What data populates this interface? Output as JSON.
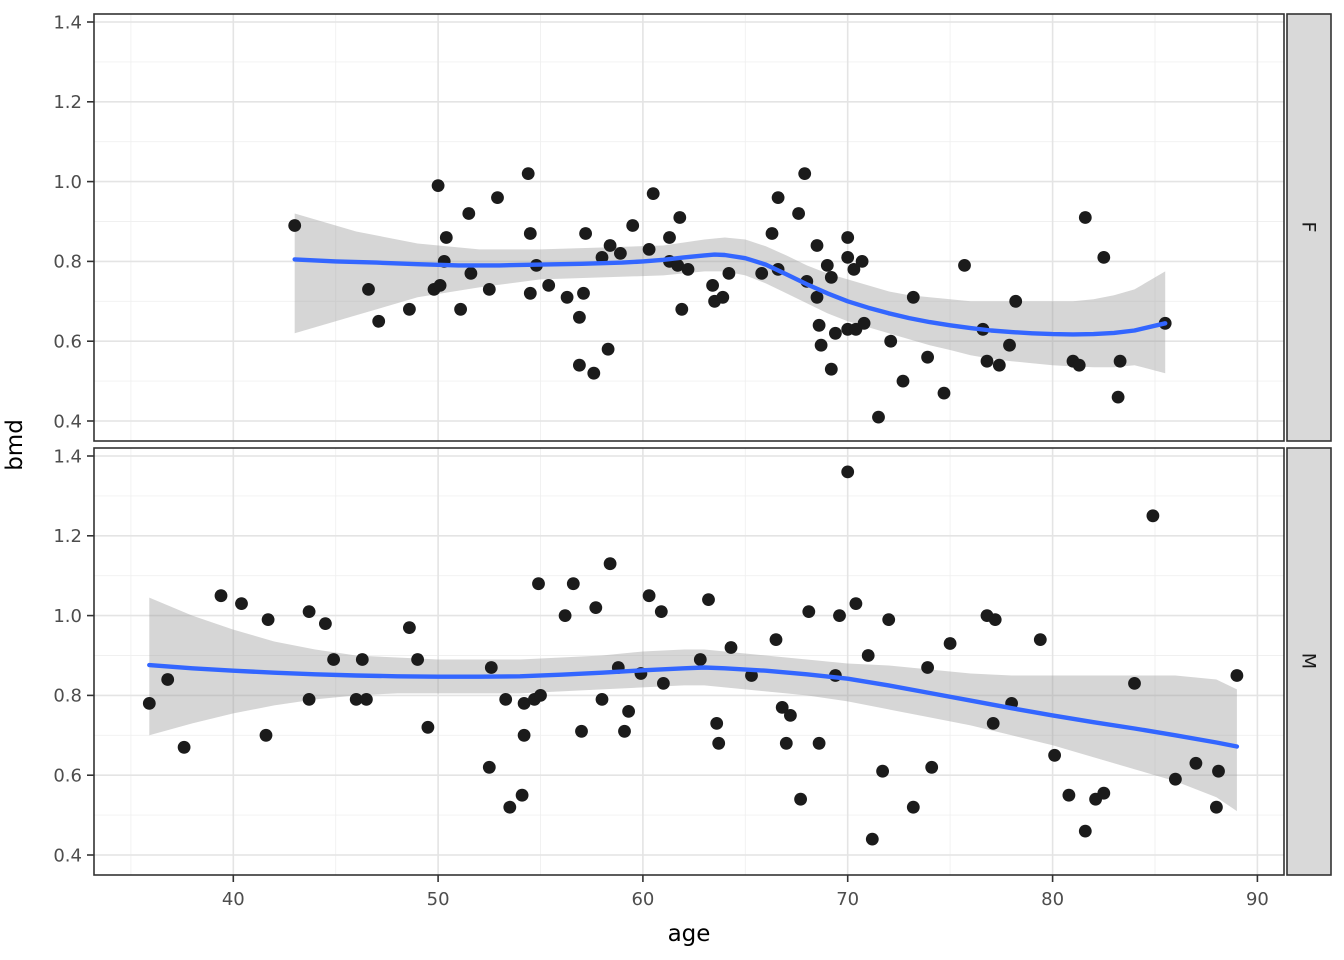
{
  "chart_data": {
    "type": "scatter",
    "title": "",
    "xlabel": "age",
    "ylabel": "bmd",
    "legend_position": "none",
    "grid": "on",
    "xlim": [
      33.2,
      91.3
    ],
    "ylim": [
      0.35,
      1.42
    ],
    "x_ticks": [
      40,
      50,
      60,
      70,
      80,
      90
    ],
    "x_minor": [
      35,
      45,
      55,
      65,
      75,
      85
    ],
    "y_ticks": [
      0.4,
      0.6,
      0.8,
      1.0,
      1.2,
      1.4
    ],
    "y_minor": [
      0.5,
      0.7,
      0.9,
      1.1,
      1.3
    ],
    "colors": {
      "smooth_line": "#3366FF",
      "band": "#999999",
      "band_alpha": 0.4,
      "point": "#1B1B1B",
      "panel_bg": "#FFFFFF",
      "panel_border": "#333333",
      "grid_major": "#E4E4E4",
      "grid_minor": "#F0F0F0",
      "strip_bg": "#D9D9D9",
      "tick": "#333333",
      "axis_text": "#4D4D4D"
    },
    "facets": [
      {
        "label": "F",
        "points": [
          [
            43.0,
            0.89
          ],
          [
            46.6,
            0.73
          ],
          [
            47.1,
            0.65
          ],
          [
            48.6,
            0.68
          ],
          [
            49.8,
            0.73
          ],
          [
            50.0,
            0.99
          ],
          [
            50.1,
            0.74
          ],
          [
            50.3,
            0.8
          ],
          [
            50.4,
            0.86
          ],
          [
            51.1,
            0.68
          ],
          [
            51.5,
            0.92
          ],
          [
            51.6,
            0.77
          ],
          [
            52.5,
            0.73
          ],
          [
            52.9,
            0.96
          ],
          [
            54.4,
            1.02
          ],
          [
            54.5,
            0.87
          ],
          [
            54.5,
            0.72
          ],
          [
            54.8,
            0.79
          ],
          [
            55.4,
            0.74
          ],
          [
            56.3,
            0.71
          ],
          [
            56.9,
            0.66
          ],
          [
            56.9,
            0.54
          ],
          [
            57.1,
            0.72
          ],
          [
            57.2,
            0.87
          ],
          [
            57.6,
            0.52
          ],
          [
            58.0,
            0.81
          ],
          [
            58.3,
            0.58
          ],
          [
            58.4,
            0.84
          ],
          [
            58.9,
            0.82
          ],
          [
            59.5,
            0.89
          ],
          [
            60.3,
            0.83
          ],
          [
            60.5,
            0.97
          ],
          [
            61.3,
            0.86
          ],
          [
            61.3,
            0.8
          ],
          [
            61.7,
            0.79
          ],
          [
            61.8,
            0.91
          ],
          [
            61.9,
            0.68
          ],
          [
            62.2,
            0.78
          ],
          [
            63.4,
            0.74
          ],
          [
            63.5,
            0.7
          ],
          [
            63.9,
            0.71
          ],
          [
            64.2,
            0.77
          ],
          [
            65.8,
            0.77
          ],
          [
            66.3,
            0.87
          ],
          [
            66.6,
            0.96
          ],
          [
            66.6,
            0.78
          ],
          [
            67.6,
            0.92
          ],
          [
            67.9,
            1.02
          ],
          [
            68.0,
            0.75
          ],
          [
            68.5,
            0.84
          ],
          [
            68.5,
            0.71
          ],
          [
            68.6,
            0.64
          ],
          [
            68.7,
            0.59
          ],
          [
            69.0,
            0.79
          ],
          [
            69.2,
            0.76
          ],
          [
            69.2,
            0.53
          ],
          [
            69.4,
            0.62
          ],
          [
            70.0,
            0.86
          ],
          [
            70.0,
            0.81
          ],
          [
            70.0,
            0.63
          ],
          [
            70.3,
            0.78
          ],
          [
            70.4,
            0.63
          ],
          [
            70.7,
            0.8
          ],
          [
            70.8,
            0.645
          ],
          [
            71.5,
            0.41
          ],
          [
            72.1,
            0.6
          ],
          [
            72.7,
            0.5
          ],
          [
            73.2,
            0.71
          ],
          [
            73.9,
            0.56
          ],
          [
            74.7,
            0.47
          ],
          [
            75.7,
            0.79
          ],
          [
            76.6,
            0.63
          ],
          [
            76.8,
            0.55
          ],
          [
            77.4,
            0.54
          ],
          [
            77.9,
            0.59
          ],
          [
            78.2,
            0.7
          ],
          [
            81.0,
            0.55
          ],
          [
            81.3,
            0.54
          ],
          [
            81.6,
            0.91
          ],
          [
            82.5,
            0.81
          ],
          [
            83.2,
            0.46
          ],
          [
            83.3,
            0.55
          ],
          [
            85.5,
            0.645
          ]
        ],
        "smooth": [
          [
            43,
            0.805
          ],
          [
            45,
            0.8
          ],
          [
            47,
            0.797
          ],
          [
            49,
            0.793
          ],
          [
            51,
            0.79
          ],
          [
            53,
            0.79
          ],
          [
            55,
            0.792
          ],
          [
            57,
            0.794
          ],
          [
            59,
            0.797
          ],
          [
            60,
            0.8
          ],
          [
            61,
            0.804
          ],
          [
            62,
            0.81
          ],
          [
            63,
            0.815
          ],
          [
            63.5,
            0.817
          ],
          [
            64,
            0.816
          ],
          [
            65,
            0.808
          ],
          [
            66,
            0.792
          ],
          [
            67,
            0.768
          ],
          [
            68,
            0.743
          ],
          [
            69,
            0.72
          ],
          [
            70,
            0.7
          ],
          [
            71,
            0.684
          ],
          [
            72,
            0.67
          ],
          [
            73,
            0.658
          ],
          [
            74,
            0.648
          ],
          [
            75,
            0.64
          ],
          [
            76,
            0.633
          ],
          [
            77,
            0.627
          ],
          [
            78,
            0.623
          ],
          [
            79,
            0.62
          ],
          [
            80,
            0.618
          ],
          [
            81,
            0.617
          ],
          [
            82,
            0.618
          ],
          [
            83,
            0.621
          ],
          [
            84,
            0.627
          ],
          [
            85.5,
            0.645
          ]
        ],
        "band": [
          [
            43,
            0.62,
            0.92
          ],
          [
            46,
            0.665,
            0.875
          ],
          [
            49,
            0.71,
            0.845
          ],
          [
            52,
            0.735,
            0.83
          ],
          [
            55,
            0.755,
            0.83
          ],
          [
            58,
            0.76,
            0.835
          ],
          [
            61,
            0.765,
            0.84
          ],
          [
            63,
            0.775,
            0.855
          ],
          [
            64,
            0.775,
            0.86
          ],
          [
            65,
            0.765,
            0.855
          ],
          [
            66,
            0.745,
            0.838
          ],
          [
            67,
            0.72,
            0.815
          ],
          [
            68,
            0.695,
            0.79
          ],
          [
            69,
            0.67,
            0.77
          ],
          [
            70,
            0.65,
            0.755
          ],
          [
            71,
            0.635,
            0.74
          ],
          [
            72,
            0.62,
            0.725
          ],
          [
            73,
            0.605,
            0.715
          ],
          [
            74,
            0.59,
            0.71
          ],
          [
            75,
            0.578,
            0.705
          ],
          [
            76,
            0.565,
            0.7
          ],
          [
            77,
            0.556,
            0.7
          ],
          [
            78,
            0.55,
            0.7
          ],
          [
            79,
            0.545,
            0.7
          ],
          [
            80,
            0.54,
            0.7
          ],
          [
            81,
            0.537,
            0.7
          ],
          [
            82,
            0.535,
            0.705
          ],
          [
            83,
            0.535,
            0.715
          ],
          [
            84,
            0.54,
            0.73
          ],
          [
            85.5,
            0.52,
            0.775
          ]
        ]
      },
      {
        "label": "M",
        "points": [
          [
            35.9,
            0.78
          ],
          [
            36.8,
            0.84
          ],
          [
            37.6,
            0.67
          ],
          [
            39.4,
            1.05
          ],
          [
            40.4,
            1.03
          ],
          [
            41.6,
            0.7
          ],
          [
            41.7,
            0.99
          ],
          [
            43.7,
            1.01
          ],
          [
            43.7,
            0.79
          ],
          [
            44.5,
            0.98
          ],
          [
            44.9,
            0.89
          ],
          [
            46.0,
            0.79
          ],
          [
            46.3,
            0.89
          ],
          [
            46.5,
            0.79
          ],
          [
            48.6,
            0.97
          ],
          [
            49.0,
            0.89
          ],
          [
            49.5,
            0.72
          ],
          [
            52.5,
            0.62
          ],
          [
            52.6,
            0.87
          ],
          [
            53.3,
            0.79
          ],
          [
            53.5,
            0.52
          ],
          [
            54.1,
            0.55
          ],
          [
            54.2,
            0.78
          ],
          [
            54.2,
            0.7
          ],
          [
            54.7,
            0.79
          ],
          [
            54.9,
            1.08
          ],
          [
            55.0,
            0.8
          ],
          [
            56.2,
            1.0
          ],
          [
            56.6,
            1.08
          ],
          [
            57.0,
            0.71
          ],
          [
            57.7,
            1.02
          ],
          [
            58.0,
            0.79
          ],
          [
            58.4,
            1.13
          ],
          [
            58.8,
            0.87
          ],
          [
            59.1,
            0.71
          ],
          [
            59.3,
            0.76
          ],
          [
            59.9,
            0.855
          ],
          [
            60.3,
            1.05
          ],
          [
            60.9,
            1.01
          ],
          [
            61.0,
            0.83
          ],
          [
            62.8,
            0.89
          ],
          [
            63.2,
            1.04
          ],
          [
            63.6,
            0.73
          ],
          [
            63.7,
            0.68
          ],
          [
            64.3,
            0.92
          ],
          [
            65.3,
            0.85
          ],
          [
            66.5,
            0.94
          ],
          [
            66.8,
            0.77
          ],
          [
            67.0,
            0.68
          ],
          [
            67.2,
            0.75
          ],
          [
            67.7,
            0.54
          ],
          [
            68.1,
            1.01
          ],
          [
            68.6,
            0.68
          ],
          [
            69.4,
            0.85
          ],
          [
            69.6,
            1.0
          ],
          [
            70.0,
            1.36
          ],
          [
            70.4,
            1.03
          ],
          [
            71.0,
            0.9
          ],
          [
            71.2,
            0.44
          ],
          [
            71.7,
            0.61
          ],
          [
            72.0,
            0.99
          ],
          [
            73.2,
            0.52
          ],
          [
            73.9,
            0.87
          ],
          [
            74.1,
            0.62
          ],
          [
            75.0,
            0.93
          ],
          [
            76.8,
            1.0
          ],
          [
            77.1,
            0.73
          ],
          [
            77.2,
            0.99
          ],
          [
            78.0,
            0.78
          ],
          [
            79.4,
            0.94
          ],
          [
            80.1,
            0.65
          ],
          [
            80.8,
            0.55
          ],
          [
            81.6,
            0.46
          ],
          [
            82.1,
            0.54
          ],
          [
            82.5,
            0.555
          ],
          [
            84.0,
            0.83
          ],
          [
            84.9,
            1.25
          ],
          [
            86.0,
            0.59
          ],
          [
            87.0,
            0.63
          ],
          [
            88.0,
            0.52
          ],
          [
            88.1,
            0.61
          ],
          [
            89.0,
            0.85
          ]
        ],
        "smooth": [
          [
            35.9,
            0.876
          ],
          [
            38,
            0.868
          ],
          [
            40,
            0.862
          ],
          [
            42,
            0.857
          ],
          [
            44,
            0.853
          ],
          [
            46,
            0.85
          ],
          [
            48,
            0.848
          ],
          [
            50,
            0.847
          ],
          [
            52,
            0.847
          ],
          [
            54,
            0.848
          ],
          [
            56,
            0.852
          ],
          [
            58,
            0.857
          ],
          [
            60,
            0.863
          ],
          [
            62,
            0.868
          ],
          [
            63,
            0.87
          ],
          [
            64,
            0.868
          ],
          [
            66,
            0.862
          ],
          [
            68,
            0.853
          ],
          [
            70,
            0.842
          ],
          [
            72,
            0.825
          ],
          [
            74,
            0.806
          ],
          [
            76,
            0.787
          ],
          [
            78,
            0.768
          ],
          [
            80,
            0.75
          ],
          [
            82,
            0.733
          ],
          [
            84,
            0.717
          ],
          [
            86,
            0.7
          ],
          [
            88,
            0.682
          ],
          [
            89,
            0.672
          ]
        ],
        "band": [
          [
            35.9,
            0.7,
            1.045
          ],
          [
            38,
            0.73,
            1.0
          ],
          [
            40,
            0.755,
            0.965
          ],
          [
            42,
            0.775,
            0.935
          ],
          [
            44,
            0.79,
            0.915
          ],
          [
            46,
            0.8,
            0.9
          ],
          [
            48,
            0.805,
            0.895
          ],
          [
            50,
            0.805,
            0.89
          ],
          [
            52,
            0.805,
            0.89
          ],
          [
            54,
            0.805,
            0.89
          ],
          [
            56,
            0.81,
            0.895
          ],
          [
            58,
            0.815,
            0.9
          ],
          [
            60,
            0.82,
            0.91
          ],
          [
            62,
            0.825,
            0.915
          ],
          [
            63,
            0.825,
            0.915
          ],
          [
            64,
            0.82,
            0.91
          ],
          [
            66,
            0.81,
            0.9
          ],
          [
            68,
            0.8,
            0.89
          ],
          [
            70,
            0.785,
            0.88
          ],
          [
            72,
            0.765,
            0.875
          ],
          [
            74,
            0.745,
            0.865
          ],
          [
            76,
            0.725,
            0.855
          ],
          [
            78,
            0.7,
            0.85
          ],
          [
            80,
            0.675,
            0.85
          ],
          [
            82,
            0.645,
            0.85
          ],
          [
            84,
            0.615,
            0.85
          ],
          [
            86,
            0.585,
            0.85
          ],
          [
            88,
            0.545,
            0.84
          ],
          [
            89,
            0.51,
            0.815
          ]
        ]
      }
    ]
  }
}
